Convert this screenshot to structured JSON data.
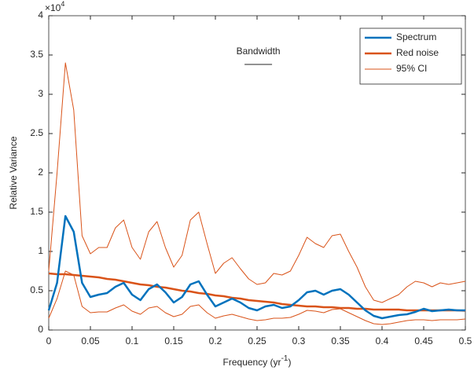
{
  "chart_data": {
    "type": "line",
    "ylabel": "Relative Variance",
    "xlabel_parts": [
      "Frequency (yr",
      "-1",
      ")"
    ],
    "y_exponent": [
      "×10",
      "4"
    ],
    "x": [
      0,
      0.01,
      0.02,
      0.03,
      0.04,
      0.05,
      0.06,
      0.07,
      0.08,
      0.09,
      0.1,
      0.11,
      0.12,
      0.13,
      0.14,
      0.15,
      0.16,
      0.17,
      0.18,
      0.19,
      0.2,
      0.21,
      0.22,
      0.23,
      0.24,
      0.25,
      0.26,
      0.27,
      0.28,
      0.29,
      0.3,
      0.31,
      0.32,
      0.33,
      0.34,
      0.35,
      0.36,
      0.37,
      0.38,
      0.39,
      0.4,
      0.41,
      0.42,
      0.43,
      0.44,
      0.45,
      0.46,
      0.47,
      0.48,
      0.49,
      0.5
    ],
    "series": [
      {
        "name": "Spectrum",
        "color": "#0072bd",
        "line_width": 2.5,
        "values": [
          0.25,
          0.6,
          1.45,
          1.25,
          0.6,
          0.42,
          0.45,
          0.47,
          0.55,
          0.6,
          0.45,
          0.38,
          0.52,
          0.58,
          0.48,
          0.35,
          0.42,
          0.58,
          0.62,
          0.45,
          0.3,
          0.35,
          0.4,
          0.35,
          0.28,
          0.25,
          0.3,
          0.32,
          0.28,
          0.3,
          0.38,
          0.48,
          0.5,
          0.45,
          0.5,
          0.52,
          0.45,
          0.35,
          0.25,
          0.18,
          0.15,
          0.17,
          0.19,
          0.2,
          0.23,
          0.27,
          0.24,
          0.25,
          0.26,
          0.25,
          0.25
        ]
      },
      {
        "name": "Red noise",
        "color": "#d95319",
        "line_width": 2.5,
        "values": [
          0.72,
          0.71,
          0.71,
          0.7,
          0.69,
          0.68,
          0.67,
          0.65,
          0.64,
          0.62,
          0.6,
          0.58,
          0.57,
          0.55,
          0.54,
          0.52,
          0.5,
          0.49,
          0.47,
          0.46,
          0.44,
          0.43,
          0.41,
          0.4,
          0.38,
          0.37,
          0.36,
          0.35,
          0.33,
          0.32,
          0.31,
          0.3,
          0.3,
          0.29,
          0.29,
          0.28,
          0.28,
          0.27,
          0.27,
          0.26,
          0.26,
          0.26,
          0.26,
          0.25,
          0.25,
          0.25,
          0.25,
          0.25,
          0.25,
          0.25,
          0.245
        ]
      },
      {
        "name": "95% CI",
        "color": "#d95319",
        "line_width": 1,
        "values": [
          0.75,
          2.0,
          3.4,
          2.8,
          1.2,
          0.97,
          1.05,
          1.05,
          1.3,
          1.4,
          1.05,
          0.9,
          1.25,
          1.38,
          1.05,
          0.8,
          0.95,
          1.4,
          1.5,
          1.1,
          0.72,
          0.85,
          0.92,
          0.78,
          0.65,
          0.58,
          0.6,
          0.72,
          0.7,
          0.75,
          0.95,
          1.18,
          1.1,
          1.05,
          1.2,
          1.22,
          1.0,
          0.8,
          0.55,
          0.38,
          0.35,
          0.4,
          0.45,
          0.55,
          0.62,
          0.6,
          0.55,
          0.6,
          0.58,
          0.6,
          0.62
        ],
        "lower": [
          0.15,
          0.4,
          0.75,
          0.7,
          0.3,
          0.22,
          0.23,
          0.23,
          0.28,
          0.32,
          0.24,
          0.2,
          0.28,
          0.3,
          0.22,
          0.17,
          0.2,
          0.3,
          0.32,
          0.22,
          0.15,
          0.18,
          0.2,
          0.17,
          0.14,
          0.12,
          0.13,
          0.15,
          0.15,
          0.16,
          0.2,
          0.25,
          0.24,
          0.22,
          0.26,
          0.27,
          0.22,
          0.17,
          0.12,
          0.08,
          0.07,
          0.08,
          0.1,
          0.12,
          0.13,
          0.13,
          0.12,
          0.13,
          0.13,
          0.13,
          0.14
        ]
      }
    ],
    "bandwidth": {
      "label": "Bandwidth",
      "x": [
        0.235,
        0.268
      ],
      "y": 3.38
    },
    "xlim": [
      0,
      0.5
    ],
    "xticks": [
      0,
      0.05,
      0.1,
      0.15,
      0.2,
      0.25,
      0.3,
      0.35,
      0.4,
      0.45,
      0.5
    ],
    "ylim": [
      0,
      4
    ],
    "yticks": [
      0,
      0.5,
      1,
      1.5,
      2,
      2.5,
      3,
      3.5,
      4
    ],
    "grid": false,
    "legend": "top-right"
  }
}
